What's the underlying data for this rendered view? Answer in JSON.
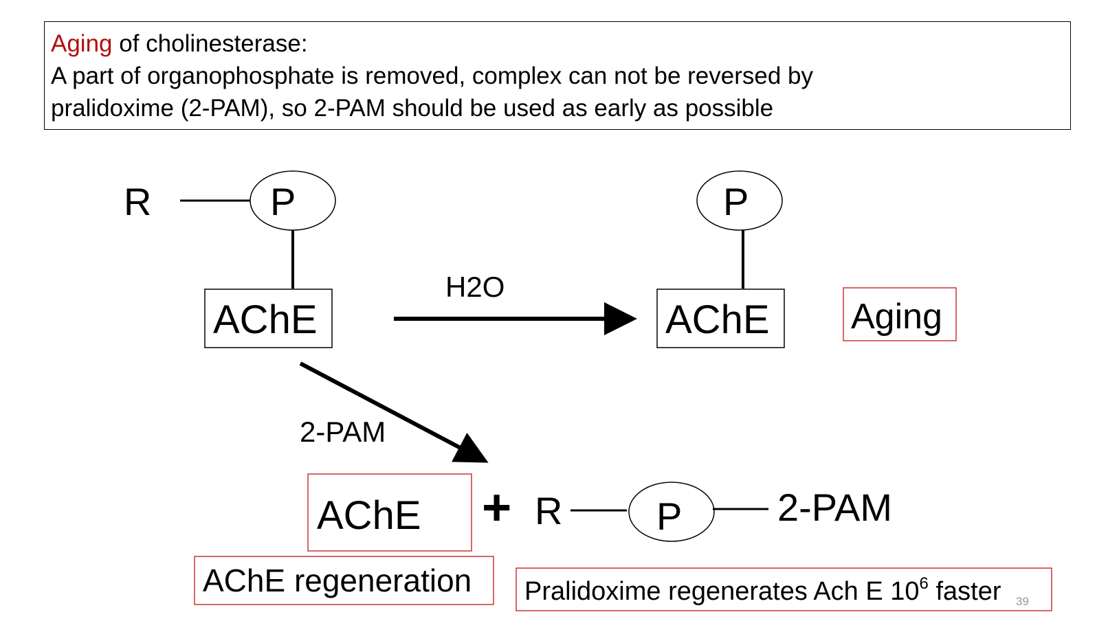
{
  "header": {
    "highlight": "Aging",
    "line1_rest": " of cholinesterase:",
    "line2": "A part of organophosphate is removed, complex can not be reversed by",
    "line3": "pralidoxime (2-PAM), so 2-PAM should be used as early as possible"
  },
  "diagram": {
    "reactant": {
      "r_label": "R",
      "p_label": "P",
      "enzyme_label": "AChE"
    },
    "aging_reaction": {
      "arrow_label": "H2O",
      "p_label": "P",
      "enzyme_label": "AChE",
      "result_label": "Aging"
    },
    "regeneration_reaction": {
      "arrow_label": "2-PAM",
      "enzyme_label": "AChE",
      "plus_sign": "+",
      "r_label": "R",
      "p_label": "P",
      "pam_label": "2-PAM",
      "regeneration_label": "AChE regeneration",
      "rate_note_prefix": "Pralidoxime regenerates Ach E 10",
      "rate_note_exponent": "6",
      "rate_note_suffix": " faster"
    },
    "colors": {
      "highlight_border": "#cc3333",
      "highlight_text": "#b01010",
      "line": "#000000"
    }
  },
  "slide": {
    "page_number": "39"
  }
}
